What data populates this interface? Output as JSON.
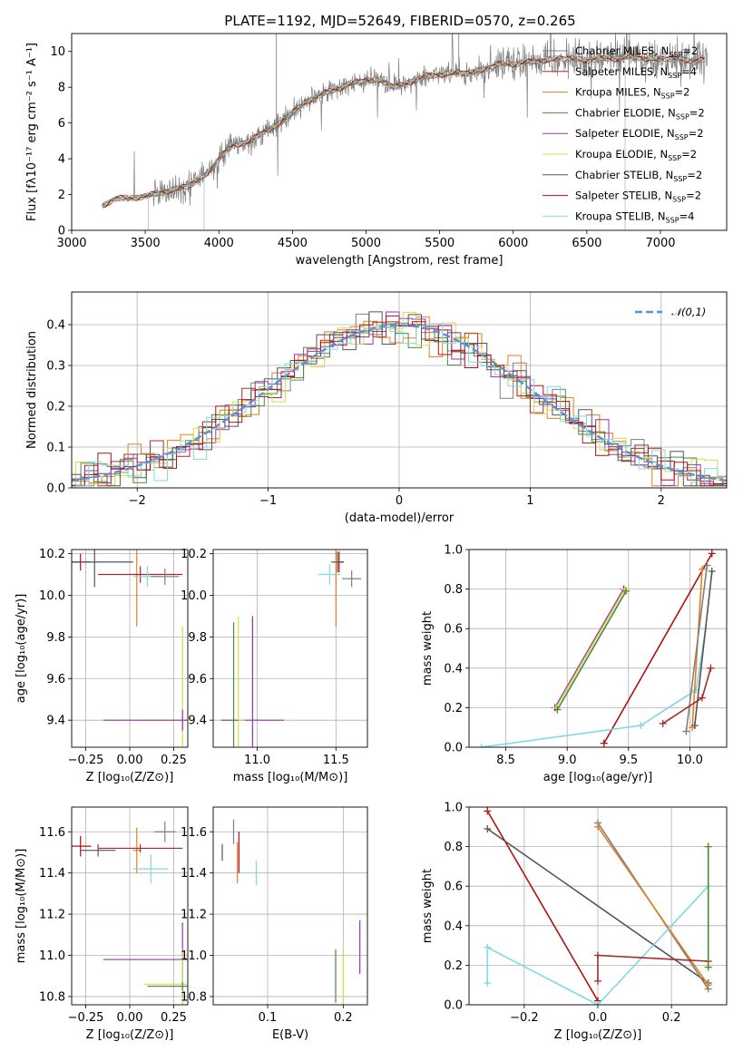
{
  "title": "PLATE=1192, MJD=52649, FIBERID=0570, z=0.265",
  "model_colors": [
    "#7f7f7f",
    "#a52a2a",
    "#e67e22",
    "#4a8a3a",
    "#9b30b0",
    "#d4dc4c",
    "#555555",
    "#b01010",
    "#80d8e0"
  ],
  "chart_data": [
    {
      "id": "spectrum",
      "type": "line",
      "xlabel": "wavelength [Angstrom, rest frame]",
      "ylabel": "Flux [fλ10⁻¹⁷ erg cm⁻² s⁻¹ A⁻¹]",
      "xlim": [
        3000,
        7450
      ],
      "ylim": [
        0,
        11
      ],
      "xticks": [
        3000,
        3500,
        4000,
        4500,
        5000,
        5500,
        6000,
        6500,
        7000
      ],
      "yticks": [
        0,
        2,
        4,
        6,
        8,
        10
      ],
      "legend_position": "upper right",
      "series": [
        {
          "name": "Chabrier MILES, N_SSP=2"
        },
        {
          "name": "Salpeter MILES, N_SSP=4"
        },
        {
          "name": "Kroupa MILES, N_SSP=2"
        },
        {
          "name": "Chabrier ELODIE, N_SSP=2"
        },
        {
          "name": "Salpeter ELODIE, N_SSP=2"
        },
        {
          "name": "Kroupa ELODIE, N_SSP=2"
        },
        {
          "name": "Chabrier STELIB, N_SSP=2"
        },
        {
          "name": "Salpeter STELIB, N_SSP=2"
        },
        {
          "name": "Kroupa STELIB, N_SSP=4"
        }
      ],
      "data_wavelength": [
        3200,
        3300,
        3400,
        3500,
        3600,
        3700,
        3800,
        3900,
        4000,
        4100,
        4200,
        4300,
        4400,
        4500,
        4600,
        4700,
        4800,
        4900,
        5000,
        5100,
        5200,
        5300,
        5400,
        5500,
        5600,
        5700,
        5800,
        5900,
        6000,
        6100,
        6200,
        6300,
        6400,
        6500,
        6600,
        6700,
        6800,
        6900,
        7000,
        7100,
        7200,
        7300
      ],
      "data_flux": [
        1.3,
        1.8,
        1.8,
        1.9,
        2.1,
        2.3,
        2.5,
        3.0,
        4.0,
        4.8,
        4.9,
        5.5,
        5.9,
        6.6,
        7.2,
        7.6,
        7.9,
        8.2,
        8.4,
        8.4,
        8.0,
        8.3,
        8.6,
        8.7,
        8.8,
        8.8,
        9.0,
        9.3,
        9.3,
        9.4,
        9.5,
        9.6,
        9.6,
        9.5,
        9.6,
        9.6,
        9.7,
        9.6,
        9.6,
        9.6,
        9.5,
        9.5
      ]
    },
    {
      "id": "residuals",
      "type": "histogram",
      "xlabel": "(data-model)/error",
      "ylabel": "Normed distribution",
      "xlim": [
        -2.5,
        2.5
      ],
      "ylim": [
        0,
        0.48
      ],
      "xticks": [
        -2,
        -1,
        0,
        1,
        2
      ],
      "yticks": [
        0.0,
        0.1,
        0.2,
        0.3,
        0.4
      ],
      "grid": true,
      "legend_position": "upper right",
      "reference_curve": {
        "name": "𝒩(0,1)",
        "style": "dashed",
        "color": "#5b8fd9"
      }
    },
    {
      "id": "age_vs_Z",
      "type": "scatter",
      "xlabel": "Z [log₁₀(Z/Z⊙)]",
      "ylabel": "age  [log₁₀(age/yr)]",
      "xlim": [
        -0.33,
        0.33
      ],
      "ylim": [
        9.27,
        10.22
      ],
      "xticks": [
        -0.25,
        0.0,
        0.25
      ],
      "yticks": [
        9.4,
        9.6,
        9.8,
        10.0,
        10.2
      ],
      "grid": true,
      "points": [
        {
          "model": 7,
          "x": -0.28,
          "y": 10.16,
          "xerr": 0.06,
          "yerr": 0.04
        },
        {
          "model": 6,
          "x": -0.2,
          "y": 10.16,
          "xerr": 0.22,
          "yerr": 0.12
        },
        {
          "model": 2,
          "x": 0.04,
          "y": 10.1,
          "xerr": 0.02,
          "yerr": 0.25
        },
        {
          "model": 1,
          "x": 0.06,
          "y": 10.1,
          "xerr": 0.24,
          "yerr": 0.04
        },
        {
          "model": 8,
          "x": 0.1,
          "y": 10.09,
          "xerr": 0.08,
          "yerr": 0.05
        },
        {
          "model": 0,
          "x": 0.2,
          "y": 10.09,
          "xerr": 0.08,
          "yerr": 0.04
        },
        {
          "model": 5,
          "x": 0.3,
          "y": 9.4,
          "xerr": 0.22,
          "yerr": 0.45
        },
        {
          "model": 4,
          "x": 0.3,
          "y": 9.4,
          "xerr": 0.45,
          "yerr": 0.05
        }
      ]
    },
    {
      "id": "age_vs_mass",
      "type": "scatter",
      "xlabel": "mass [log₁₀(M/M⊙)]",
      "ylabel": "",
      "xlim": [
        10.72,
        11.7
      ],
      "ylim": [
        9.27,
        10.22
      ],
      "xticks": [
        11.0,
        11.5
      ],
      "yticks": [
        9.4,
        9.6,
        9.8,
        10.0,
        10.2
      ],
      "grid": true,
      "points": [
        {
          "model": 4,
          "x": 10.97,
          "y": 9.4,
          "xerr": 0.2,
          "yerr": 0.5
        },
        {
          "model": 5,
          "x": 10.88,
          "y": 9.4,
          "xerr": 0.04,
          "yerr": 0.5
        },
        {
          "model": 3,
          "x": 10.85,
          "y": 9.4,
          "xerr": 0.03,
          "yerr": 0.47
        },
        {
          "model": 7,
          "x": 11.52,
          "y": 10.16,
          "xerr": 0.03,
          "yerr": 0.05
        },
        {
          "model": 6,
          "x": 11.51,
          "y": 10.16,
          "xerr": 0.04,
          "yerr": 0.05
        },
        {
          "model": 2,
          "x": 11.5,
          "y": 10.1,
          "xerr": 0.02,
          "yerr": 0.25
        },
        {
          "model": 8,
          "x": 11.46,
          "y": 10.1,
          "xerr": 0.07,
          "yerr": 0.05
        },
        {
          "model": 0,
          "x": 11.6,
          "y": 10.08,
          "xerr": 0.06,
          "yerr": 0.04
        }
      ]
    },
    {
      "id": "weights_vs_age",
      "type": "line",
      "xlabel": "age  [log₁₀(age/yr)]",
      "ylabel": "mass weight",
      "xlim": [
        8.2,
        10.3
      ],
      "ylim": [
        0,
        1
      ],
      "xticks": [
        8.5,
        9.0,
        9.5,
        10.0
      ],
      "yticks": [
        0.0,
        0.2,
        0.4,
        0.6,
        0.8,
        1.0
      ],
      "grid": true,
      "series": [
        {
          "model": 4,
          "x": [
            8.9,
            9.46
          ],
          "y": [
            0.2,
            0.8
          ]
        },
        {
          "model": 5,
          "x": [
            8.91,
            9.47
          ],
          "y": [
            0.2,
            0.8
          ]
        },
        {
          "model": 3,
          "x": [
            8.92,
            9.48
          ],
          "y": [
            0.19,
            0.79
          ]
        },
        {
          "model": 7,
          "x": [
            9.3,
            10.18
          ],
          "y": [
            0.02,
            0.98
          ]
        },
        {
          "model": 8,
          "x": [
            8.3,
            9.6,
            10.05,
            10.13
          ],
          "y": [
            0.0,
            0.11,
            0.29,
            0.6
          ]
        },
        {
          "model": 2,
          "x": [
            10.02,
            10.1
          ],
          "y": [
            0.1,
            0.9
          ]
        },
        {
          "model": 6,
          "x": [
            10.04,
            10.18
          ],
          "y": [
            0.11,
            0.89
          ]
        },
        {
          "model": 0,
          "x": [
            9.97,
            10.14
          ],
          "y": [
            0.08,
            0.92
          ]
        },
        {
          "model": 1,
          "x": [
            9.78,
            10.1,
            10.17
          ],
          "y": [
            0.12,
            0.25,
            0.4
          ]
        }
      ]
    },
    {
      "id": "mass_vs_Z",
      "type": "scatter",
      "xlabel": "Z [log₁₀(Z/Z⊙)]",
      "ylabel": "mass [log₁₀(M/M⊙)]",
      "xlim": [
        -0.33,
        0.33
      ],
      "ylim": [
        10.76,
        11.72
      ],
      "xticks": [
        -0.25,
        0.0,
        0.25
      ],
      "yticks": [
        10.8,
        11.0,
        11.2,
        11.4,
        11.6
      ],
      "grid": true,
      "points": [
        {
          "model": 7,
          "x": -0.28,
          "y": 11.53,
          "xerr": 0.06,
          "yerr": 0.05
        },
        {
          "model": 6,
          "x": -0.18,
          "y": 11.51,
          "xerr": 0.1,
          "yerr": 0.03
        },
        {
          "model": 2,
          "x": 0.04,
          "y": 11.51,
          "xerr": 0.02,
          "yerr": 0.11
        },
        {
          "model": 1,
          "x": 0.06,
          "y": 11.52,
          "xerr": 0.24,
          "yerr": 0.02
        },
        {
          "model": 8,
          "x": 0.12,
          "y": 11.42,
          "xerr": 0.1,
          "yerr": 0.07
        },
        {
          "model": 0,
          "x": 0.2,
          "y": 11.6,
          "xerr": 0.06,
          "yerr": 0.05
        },
        {
          "model": 4,
          "x": 0.3,
          "y": 10.98,
          "xerr": 0.45,
          "yerr": 0.18
        },
        {
          "model": 5,
          "x": 0.3,
          "y": 10.86,
          "xerr": 0.22,
          "yerr": 0.17
        },
        {
          "model": 3,
          "x": 0.3,
          "y": 10.85,
          "xerr": 0.2,
          "yerr": 0.02
        }
      ]
    },
    {
      "id": "mass_vs_EBV",
      "type": "scatter",
      "xlabel": "E(B-V)",
      "ylabel": "",
      "xlim": [
        0.028,
        0.232
      ],
      "ylim": [
        10.76,
        11.72
      ],
      "xticks": [
        0.1,
        0.2
      ],
      "yticks": [
        10.8,
        11.0,
        11.2,
        11.4,
        11.6
      ],
      "grid": true,
      "points": [
        {
          "model": 6,
          "x": 0.04,
          "y": 11.5,
          "xerr": 0.0,
          "yerr": 0.04
        },
        {
          "model": 0,
          "x": 0.055,
          "y": 11.6,
          "xerr": 0.0,
          "yerr": 0.06
        },
        {
          "model": 7,
          "x": 0.062,
          "y": 11.5,
          "xerr": 0.0,
          "yerr": 0.1
        },
        {
          "model": 2,
          "x": 0.06,
          "y": 11.45,
          "xerr": 0.0,
          "yerr": 0.1
        },
        {
          "model": 8,
          "x": 0.085,
          "y": 11.4,
          "xerr": 0.0,
          "yerr": 0.06
        },
        {
          "model": 3,
          "x": 0.19,
          "y": 10.9,
          "xerr": 0.0,
          "yerr": 0.13
        },
        {
          "model": 5,
          "x": 0.2,
          "y": 10.9,
          "xerr": 0.0,
          "yerr": 0.14
        },
        {
          "model": 4,
          "x": 0.222,
          "y": 11.04,
          "xerr": 0.0,
          "yerr": 0.13
        }
      ]
    },
    {
      "id": "weights_vs_Z",
      "type": "line",
      "xlabel": "Z [log₁₀(Z/Z⊙)]",
      "ylabel": "mass weight",
      "xlim": [
        -0.35,
        0.35
      ],
      "ylim": [
        0,
        1
      ],
      "xticks": [
        -0.2,
        0.0,
        0.2
      ],
      "yticks": [
        0.0,
        0.2,
        0.4,
        0.6,
        0.8,
        1.0
      ],
      "grid": true,
      "series": [
        {
          "model": 7,
          "x": [
            -0.3,
            0.0
          ],
          "y": [
            0.98,
            0.02
          ]
        },
        {
          "model": 6,
          "x": [
            -0.3,
            0.3
          ],
          "y": [
            0.89,
            0.11
          ]
        },
        {
          "model": 0,
          "x": [
            0.0,
            0.3
          ],
          "y": [
            0.92,
            0.08
          ]
        },
        {
          "model": 2,
          "x": [
            0.0,
            0.3
          ],
          "y": [
            0.9,
            0.1
          ]
        },
        {
          "model": 8,
          "x": [
            -0.3,
            -0.3,
            0.0,
            0.3
          ],
          "y": [
            0.11,
            0.29,
            0.0,
            0.6
          ]
        },
        {
          "model": 1,
          "x": [
            0.0,
            0.0,
            0.3
          ],
          "y": [
            0.12,
            0.25,
            0.22
          ]
        },
        {
          "model": 5,
          "x": [
            0.3,
            0.3
          ],
          "y": [
            0.2,
            0.8
          ]
        },
        {
          "model": 3,
          "x": [
            0.3,
            0.3
          ],
          "y": [
            0.19,
            0.8
          ]
        }
      ]
    }
  ]
}
